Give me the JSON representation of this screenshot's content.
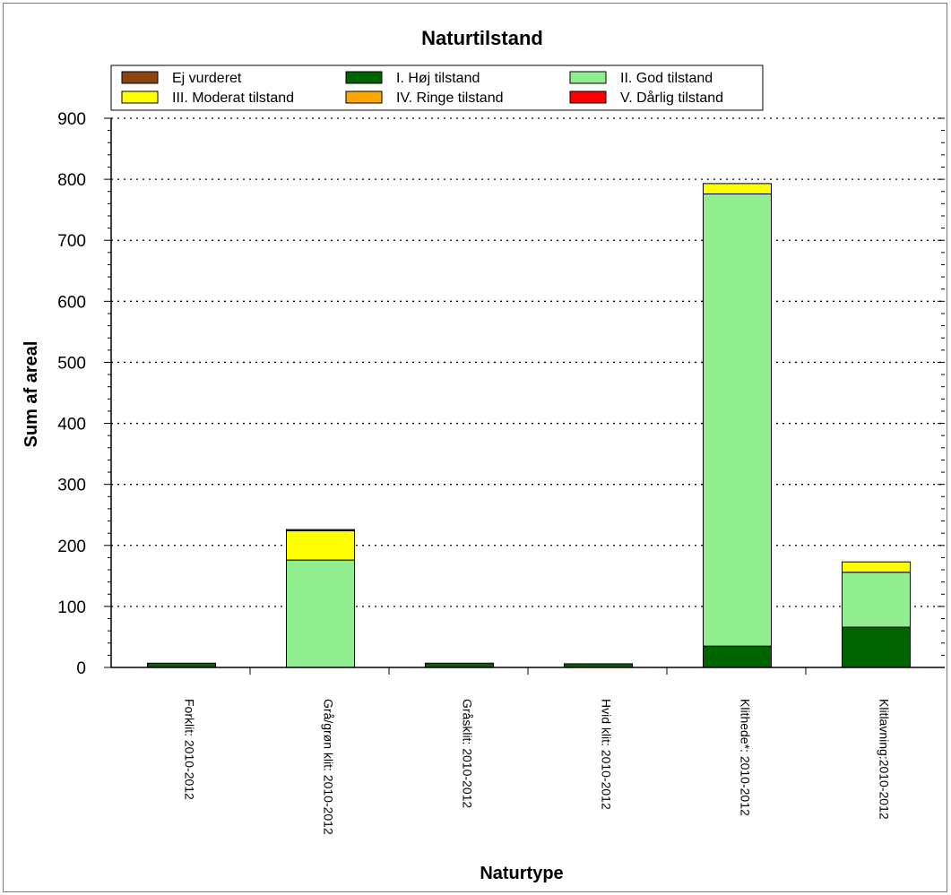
{
  "chart_data": {
    "type": "bar",
    "stacked": true,
    "title": "Naturtilstand",
    "xlabel": "Naturtype",
    "ylabel": "Sum af areal",
    "ylim": [
      0,
      900
    ],
    "yticks": [
      "0",
      "100",
      "200",
      "300",
      "400",
      "500",
      "600",
      "700",
      "800",
      "900"
    ],
    "grid": "horizontal-dotted",
    "legend_position": "top",
    "categories": [
      "Forklit: 2010-2012",
      "Grå/grøn klit: 2010-2012",
      "Gråsklit: 2010-2012",
      "Hvid klit: 2010-2012",
      "Klithede*: 2010-2012",
      "Klitlavning:2010-2012"
    ],
    "series": [
      {
        "name": "Ej vurderet",
        "color": "#8B4513",
        "values": [
          0,
          0,
          0,
          0,
          0,
          0
        ]
      },
      {
        "name": "I. Høj tilstand",
        "color": "#006400",
        "values": [
          7,
          0,
          7,
          6,
          35,
          66
        ]
      },
      {
        "name": "II. God tilstand",
        "color": "#90EE90",
        "values": [
          0,
          176,
          0,
          0,
          741,
          90
        ]
      },
      {
        "name": "III. Moderat tilstand",
        "color": "#FFFF00",
        "values": [
          0,
          48,
          0,
          0,
          17,
          17
        ]
      },
      {
        "name": "IV. Ringe tilstand",
        "color": "#FFA500",
        "values": [
          0,
          0,
          0,
          0,
          0,
          0
        ]
      },
      {
        "name": "V. Dårlig tilstand",
        "color": "#FF0000",
        "values": [
          0,
          2,
          0,
          0,
          0,
          0
        ]
      }
    ]
  }
}
